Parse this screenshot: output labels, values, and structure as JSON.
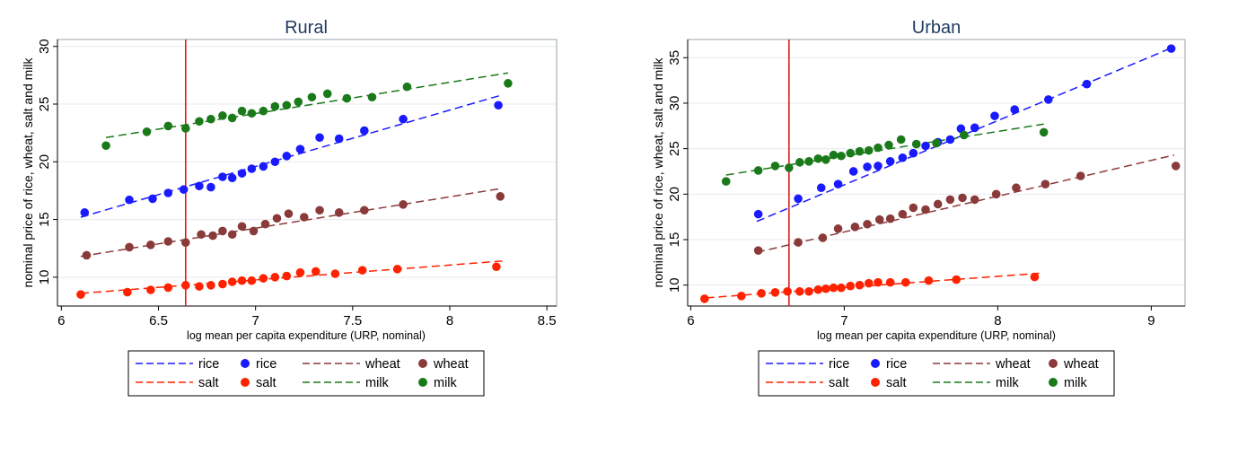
{
  "legend": {
    "rows": [
      [
        {
          "kind": "line",
          "series": "rice",
          "label": "rice"
        },
        {
          "kind": "dot",
          "series": "rice",
          "label": "rice"
        },
        {
          "kind": "line",
          "series": "wheat",
          "label": "wheat"
        },
        {
          "kind": "dot",
          "series": "wheat",
          "label": "wheat"
        }
      ],
      [
        {
          "kind": "line",
          "series": "salt",
          "label": "salt"
        },
        {
          "kind": "dot",
          "series": "salt",
          "label": "salt"
        },
        {
          "kind": "line",
          "series": "milk",
          "label": "milk"
        },
        {
          "kind": "dot",
          "series": "milk",
          "label": "milk"
        }
      ]
    ]
  },
  "chart_data": [
    {
      "type": "scatter",
      "title": "Rural",
      "xlabel": "log mean per capita expenditure (URP, nominal)",
      "ylabel": "nominal price of rice, wheat, salt and milk",
      "xlim": [
        5.98,
        8.55
      ],
      "ylim": [
        7.5,
        30.6
      ],
      "xticks": [
        6,
        6.5,
        7,
        7.5,
        8,
        8.5
      ],
      "xtick_labels": [
        "6",
        "6.5",
        "7",
        "7.5",
        "8",
        "8.5"
      ],
      "yticks": [
        10,
        15,
        20,
        25,
        30
      ],
      "ytick_labels": [
        "10",
        "15",
        "20",
        "25",
        "30"
      ],
      "grid": true,
      "vline": {
        "x": 6.64,
        "color": "#e31a1c"
      },
      "series": [
        {
          "name": "rice",
          "color": "#1a1aff",
          "points": [
            [
              6.12,
              15.6
            ],
            [
              6.35,
              16.7
            ],
            [
              6.47,
              16.8
            ],
            [
              6.55,
              17.3
            ],
            [
              6.63,
              17.6
            ],
            [
              6.71,
              17.9
            ],
            [
              6.77,
              17.8
            ],
            [
              6.83,
              18.7
            ],
            [
              6.88,
              18.6
            ],
            [
              6.93,
              19.0
            ],
            [
              6.98,
              19.4
            ],
            [
              7.04,
              19.6
            ],
            [
              7.1,
              20.0
            ],
            [
              7.16,
              20.5
            ],
            [
              7.23,
              21.1
            ],
            [
              7.33,
              22.1
            ],
            [
              7.43,
              22.0
            ],
            [
              7.56,
              22.7
            ],
            [
              7.76,
              23.7
            ],
            [
              8.25,
              24.9
            ]
          ],
          "fit": [
            [
              6.1,
              15.2
            ],
            [
              8.27,
              25.8
            ]
          ]
        },
        {
          "name": "wheat",
          "color": "#8b3a3a",
          "points": [
            [
              6.13,
              11.9
            ],
            [
              6.35,
              12.6
            ],
            [
              6.46,
              12.8
            ],
            [
              6.55,
              13.1
            ],
            [
              6.64,
              13.0
            ],
            [
              6.72,
              13.7
            ],
            [
              6.78,
              13.6
            ],
            [
              6.83,
              14.0
            ],
            [
              6.88,
              13.7
            ],
            [
              6.93,
              14.4
            ],
            [
              6.99,
              14.0
            ],
            [
              7.05,
              14.6
            ],
            [
              7.11,
              15.1
            ],
            [
              7.17,
              15.5
            ],
            [
              7.25,
              15.2
            ],
            [
              7.33,
              15.8
            ],
            [
              7.43,
              15.6
            ],
            [
              7.56,
              15.8
            ],
            [
              7.76,
              16.3
            ],
            [
              8.26,
              17.0
            ]
          ],
          "fit": [
            [
              6.1,
              11.8
            ],
            [
              8.27,
              17.7
            ]
          ]
        },
        {
          "name": "salt",
          "color": "#ff2200",
          "points": [
            [
              6.1,
              8.5
            ],
            [
              6.34,
              8.7
            ],
            [
              6.46,
              8.9
            ],
            [
              6.55,
              9.1
            ],
            [
              6.64,
              9.3
            ],
            [
              6.71,
              9.2
            ],
            [
              6.77,
              9.3
            ],
            [
              6.83,
              9.4
            ],
            [
              6.88,
              9.6
            ],
            [
              6.93,
              9.7
            ],
            [
              6.98,
              9.7
            ],
            [
              7.04,
              9.9
            ],
            [
              7.1,
              10.0
            ],
            [
              7.16,
              10.1
            ],
            [
              7.23,
              10.4
            ],
            [
              7.31,
              10.5
            ],
            [
              7.41,
              10.3
            ],
            [
              7.55,
              10.6
            ],
            [
              7.73,
              10.7
            ],
            [
              8.24,
              10.9
            ]
          ],
          "fit": [
            [
              6.1,
              8.6
            ],
            [
              8.27,
              11.4
            ]
          ]
        },
        {
          "name": "milk",
          "color": "#1a7a1a",
          "points": [
            [
              6.23,
              21.4
            ],
            [
              6.44,
              22.6
            ],
            [
              6.55,
              23.1
            ],
            [
              6.64,
              22.9
            ],
            [
              6.71,
              23.5
            ],
            [
              6.77,
              23.7
            ],
            [
              6.83,
              24.0
            ],
            [
              6.88,
              23.8
            ],
            [
              6.93,
              24.4
            ],
            [
              6.98,
              24.2
            ],
            [
              7.04,
              24.4
            ],
            [
              7.1,
              24.8
            ],
            [
              7.16,
              24.9
            ],
            [
              7.22,
              25.2
            ],
            [
              7.29,
              25.6
            ],
            [
              7.37,
              25.9
            ],
            [
              7.47,
              25.5
            ],
            [
              7.6,
              25.6
            ],
            [
              7.78,
              26.5
            ],
            [
              8.3,
              26.8
            ]
          ],
          "fit": [
            [
              6.23,
              22.1
            ],
            [
              8.3,
              27.7
            ]
          ]
        }
      ]
    },
    {
      "type": "scatter",
      "title": "Urban",
      "xlabel": "log mean per capita expenditure (URP, nominal)",
      "ylabel": "nominal price of rice, wheat, salt and milk",
      "xlim": [
        5.98,
        9.22
      ],
      "ylim": [
        7.7,
        37.0
      ],
      "xticks": [
        6,
        7,
        8,
        9
      ],
      "xtick_labels": [
        "6",
        "7",
        "8",
        "9"
      ],
      "yticks": [
        10,
        15,
        20,
        25,
        30,
        35
      ],
      "ytick_labels": [
        "10",
        "15",
        "20",
        "25",
        "30",
        "35"
      ],
      "grid": true,
      "vline": {
        "x": 6.64,
        "color": "#e31a1c"
      },
      "series": [
        {
          "name": "rice",
          "color": "#1a1aff",
          "points": [
            [
              6.44,
              17.8
            ],
            [
              6.7,
              19.5
            ],
            [
              6.85,
              20.7
            ],
            [
              6.96,
              21.1
            ],
            [
              7.06,
              22.5
            ],
            [
              7.15,
              23.0
            ],
            [
              7.22,
              23.1
            ],
            [
              7.3,
              23.6
            ],
            [
              7.38,
              24.0
            ],
            [
              7.45,
              24.5
            ],
            [
              7.53,
              25.3
            ],
            [
              7.61,
              25.7
            ],
            [
              7.69,
              26.0
            ],
            [
              7.76,
              27.2
            ],
            [
              7.85,
              27.3
            ],
            [
              7.98,
              28.6
            ],
            [
              8.11,
              29.3
            ],
            [
              8.33,
              30.4
            ],
            [
              8.58,
              32.1
            ],
            [
              9.13,
              36.0
            ]
          ],
          "fit": [
            [
              6.43,
              17.0
            ],
            [
              9.15,
              36.2
            ]
          ]
        },
        {
          "name": "wheat",
          "color": "#8b3a3a",
          "points": [
            [
              6.44,
              13.8
            ],
            [
              6.7,
              14.7
            ],
            [
              6.86,
              15.2
            ],
            [
              6.96,
              16.2
            ],
            [
              7.07,
              16.4
            ],
            [
              7.15,
              16.7
            ],
            [
              7.23,
              17.2
            ],
            [
              7.3,
              17.3
            ],
            [
              7.38,
              17.8
            ],
            [
              7.45,
              18.5
            ],
            [
              7.53,
              18.3
            ],
            [
              7.61,
              18.9
            ],
            [
              7.69,
              19.4
            ],
            [
              7.77,
              19.6
            ],
            [
              7.85,
              19.4
            ],
            [
              7.99,
              20.0
            ],
            [
              8.12,
              20.7
            ],
            [
              8.31,
              21.1
            ],
            [
              8.54,
              22.0
            ],
            [
              9.16,
              23.1
            ]
          ],
          "fit": [
            [
              6.43,
              13.6
            ],
            [
              9.15,
              24.3
            ]
          ]
        },
        {
          "name": "salt",
          "color": "#ff2200",
          "points": [
            [
              6.09,
              8.5
            ],
            [
              6.33,
              8.8
            ],
            [
              6.46,
              9.1
            ],
            [
              6.55,
              9.2
            ],
            [
              6.63,
              9.3
            ],
            [
              6.71,
              9.3
            ],
            [
              6.77,
              9.3
            ],
            [
              6.83,
              9.5
            ],
            [
              6.88,
              9.6
            ],
            [
              6.93,
              9.7
            ],
            [
              6.98,
              9.7
            ],
            [
              7.04,
              9.9
            ],
            [
              7.1,
              10.0
            ],
            [
              7.16,
              10.2
            ],
            [
              7.22,
              10.3
            ],
            [
              7.3,
              10.3
            ],
            [
              7.4,
              10.3
            ],
            [
              7.55,
              10.5
            ],
            [
              7.73,
              10.6
            ],
            [
              8.24,
              10.9
            ]
          ],
          "fit": [
            [
              6.1,
              8.6
            ],
            [
              8.27,
              11.3
            ]
          ]
        },
        {
          "name": "milk",
          "color": "#1a7a1a",
          "points": [
            [
              6.23,
              21.4
            ],
            [
              6.44,
              22.6
            ],
            [
              6.55,
              23.1
            ],
            [
              6.64,
              22.9
            ],
            [
              6.71,
              23.5
            ],
            [
              6.77,
              23.6
            ],
            [
              6.83,
              23.9
            ],
            [
              6.88,
              23.8
            ],
            [
              6.93,
              24.3
            ],
            [
              6.98,
              24.2
            ],
            [
              7.04,
              24.5
            ],
            [
              7.1,
              24.7
            ],
            [
              7.16,
              24.8
            ],
            [
              7.22,
              25.1
            ],
            [
              7.29,
              25.4
            ],
            [
              7.37,
              26.0
            ],
            [
              7.47,
              25.5
            ],
            [
              7.6,
              25.6
            ],
            [
              7.78,
              26.5
            ],
            [
              8.3,
              26.8
            ]
          ],
          "fit": [
            [
              6.23,
              22.1
            ],
            [
              8.3,
              27.7
            ]
          ]
        }
      ]
    }
  ]
}
